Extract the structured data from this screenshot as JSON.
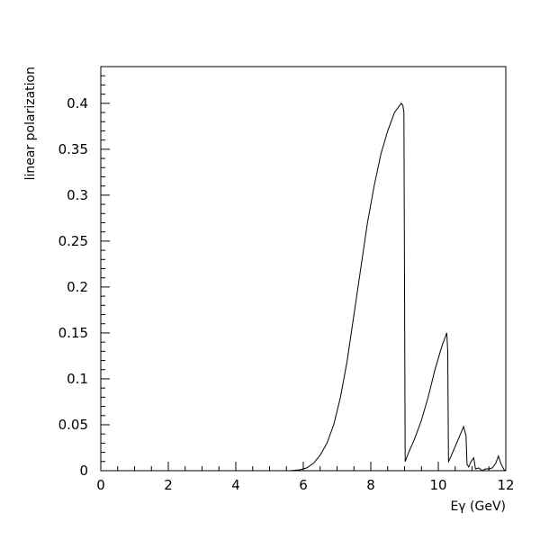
{
  "chart_data": {
    "type": "line",
    "title": "",
    "xlabel": "Eγ (GeV)",
    "ylabel": "linear polarization",
    "xlim": [
      0,
      12
    ],
    "ylim": [
      0,
      0.44
    ],
    "x_ticks": [
      0,
      2,
      4,
      6,
      8,
      10,
      12
    ],
    "x_tick_labels": [
      "0",
      "2",
      "4",
      "6",
      "8",
      "10",
      "12"
    ],
    "y_ticks": [
      0,
      0.05,
      0.1,
      0.15,
      0.2,
      0.25,
      0.3,
      0.35,
      0.4
    ],
    "y_tick_labels": [
      "0",
      "0.05",
      "0.1",
      "0.15",
      "0.2",
      "0.25",
      "0.3",
      "0.35",
      "0.4"
    ],
    "grid": false,
    "legend": "none",
    "series": [
      {
        "color": "#000000",
        "x": [
          5.3,
          5.6,
          5.9,
          6.1,
          6.3,
          6.5,
          6.7,
          6.9,
          7.1,
          7.3,
          7.5,
          7.7,
          7.9,
          8.1,
          8.3,
          8.5,
          8.7,
          8.9,
          8.95,
          8.98,
          9.02,
          9.1,
          9.3,
          9.5,
          9.7,
          9.9,
          10.1,
          10.25,
          10.28,
          10.3,
          10.33,
          10.45,
          10.6,
          10.75,
          10.82,
          10.85,
          10.9,
          10.97,
          11.05,
          11.1,
          11.2,
          11.3,
          11.4,
          11.5,
          11.6,
          11.7,
          11.78,
          11.85,
          11.95,
          12.0
        ],
        "y": [
          0,
          0,
          0.001,
          0.003,
          0.008,
          0.017,
          0.03,
          0.05,
          0.08,
          0.12,
          0.17,
          0.22,
          0.27,
          0.31,
          0.345,
          0.37,
          0.39,
          0.4,
          0.398,
          0.39,
          0.01,
          0.018,
          0.035,
          0.055,
          0.08,
          0.11,
          0.135,
          0.15,
          0.13,
          0.01,
          0.012,
          0.022,
          0.035,
          0.048,
          0.038,
          0.007,
          0.004,
          0.01,
          0.014,
          0.002,
          0.003,
          0.0,
          0.002,
          0.002,
          0.003,
          0.008,
          0.016,
          0.008,
          0.001,
          0.0
        ]
      }
    ]
  }
}
